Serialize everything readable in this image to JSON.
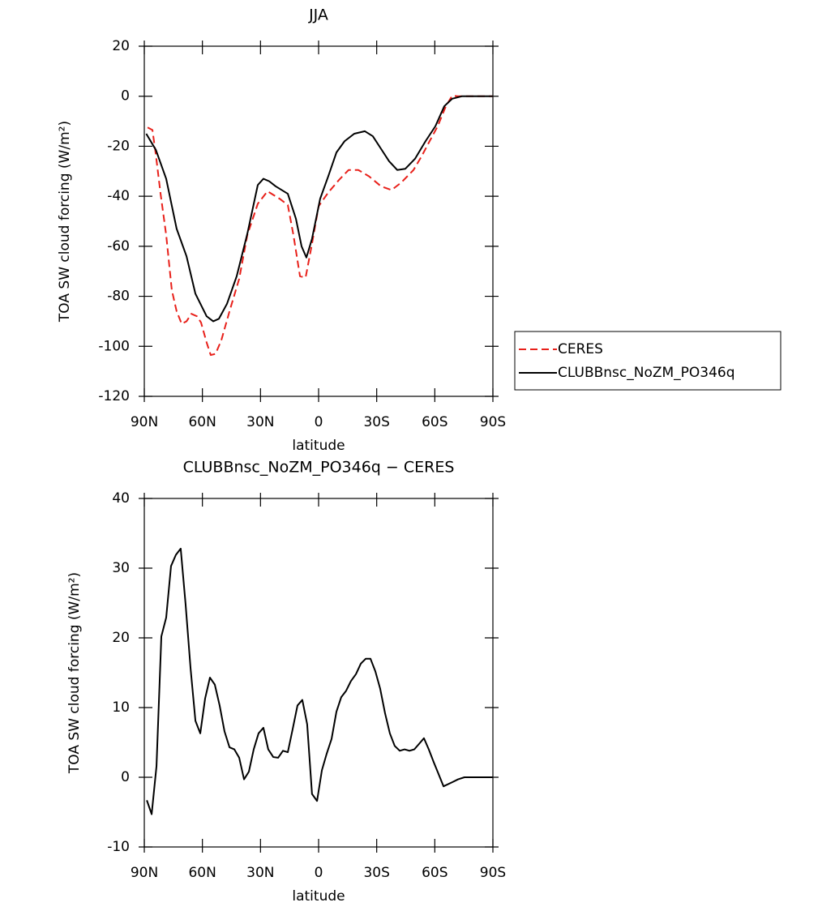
{
  "chart_data": [
    {
      "type": "line",
      "title": "JJA",
      "xlabel": "latitude",
      "ylabel": "TOA SW cloud forcing (W/m²)",
      "xlim": [
        90,
        -90
      ],
      "xticks": [
        {
          "value": 90,
          "label": "90N"
        },
        {
          "value": 60,
          "label": "60N"
        },
        {
          "value": 30,
          "label": "30N"
        },
        0,
        {
          "value": -30,
          "label": "30S"
        },
        {
          "value": -60,
          "label": "60S"
        },
        {
          "value": -90,
          "label": "90S"
        }
      ],
      "ylim": [
        -120,
        20
      ],
      "yticks": [
        -120,
        -100,
        -80,
        -60,
        -40,
        -20,
        0,
        20
      ],
      "legend": "right",
      "series": [
        {
          "name": "CERES",
          "color": "#e8201a",
          "dashed": true,
          "x": [
            88.3,
            85.8,
            84.1,
            81.6,
            78.7,
            75.8,
            73.3,
            70.7,
            68.2,
            65.7,
            62.8,
            60.7,
            57.8,
            55.7,
            53.2,
            50.2,
            46,
            41,
            36.8,
            31.4,
            26.4,
            20.1,
            15.9,
            13,
            9.6,
            6.7,
            3.4,
            0,
            -5,
            -10.5,
            -15.5,
            -20.5,
            -26,
            -32.2,
            -37.7,
            -42.7,
            -49,
            -53.2,
            -57.3,
            -61.5,
            -65.7,
            -69,
            -72,
            -90
          ],
          "values": [
            -12.5,
            -13.5,
            -23,
            -39,
            -55.5,
            -77.5,
            -86,
            -91,
            -90,
            -87,
            -88,
            -90.5,
            -98.5,
            -103.5,
            -103,
            -97.5,
            -86,
            -73,
            -55.5,
            -43,
            -38,
            -41,
            -43.5,
            -55.5,
            -72,
            -72.5,
            -59,
            -44,
            -38.5,
            -33.5,
            -29.5,
            -29.5,
            -32,
            -36,
            -37.5,
            -34.5,
            -29.5,
            -24,
            -18,
            -12,
            -4,
            0.2,
            0,
            0
          ]
        },
        {
          "name": "CLUBBnsc_NoZM_PO346q",
          "color": "#000000",
          "dashed": false,
          "x": [
            89,
            84,
            78.7,
            73.3,
            68.2,
            63.6,
            57.8,
            54.4,
            51.5,
            47.3,
            42.3,
            36.8,
            31.4,
            28.5,
            25.5,
            22.2,
            15.9,
            11.7,
            8.8,
            6.3,
            3.4,
            -0.8,
            -5,
            -9.2,
            -13.4,
            -18.4,
            -23.9,
            -28,
            -32.2,
            -36.4,
            -40.6,
            -44.8,
            -49.8,
            -55.2,
            -60.3,
            -64.9,
            -69,
            -74.1,
            -90
          ],
          "values": [
            -15,
            -21.5,
            -33,
            -53,
            -64,
            -79,
            -88,
            -90,
            -89,
            -83,
            -72,
            -55,
            -35.5,
            -33,
            -34,
            -36,
            -39,
            -49,
            -60,
            -64.5,
            -57,
            -41,
            -32,
            -22.5,
            -18,
            -15,
            -14,
            -16,
            -21,
            -26,
            -29.5,
            -29,
            -25,
            -18,
            -12,
            -4,
            -1,
            0,
            0
          ]
        }
      ]
    },
    {
      "type": "line",
      "title": "CLUBBnsc_NoZM_PO346q − CERES",
      "xlabel": "latitude",
      "ylabel": "TOA SW cloud forcing (W/m²)",
      "xlim": [
        90,
        -90
      ],
      "xticks": [
        {
          "value": 90,
          "label": "90N"
        },
        {
          "value": 60,
          "label": "60N"
        },
        {
          "value": 30,
          "label": "30N"
        },
        0,
        {
          "value": -30,
          "label": "30S"
        },
        {
          "value": -60,
          "label": "60S"
        },
        {
          "value": -90,
          "label": "90S"
        }
      ],
      "ylim": [
        -10,
        40
      ],
      "yticks": [
        -10,
        0,
        10,
        20,
        30,
        40
      ],
      "series": [
        {
          "color": "#000000",
          "dashed": false,
          "x": [
            88.7,
            86.2,
            83.7,
            81.2,
            78.7,
            76.2,
            73.7,
            71.2,
            68.7,
            66.1,
            63.6,
            61.1,
            58.6,
            56.1,
            53.6,
            51.1,
            48.6,
            46,
            43.5,
            41,
            38.5,
            36,
            33.5,
            31,
            28.5,
            26,
            23.4,
            20.9,
            18.4,
            15.9,
            13.4,
            10.9,
            8.4,
            5.9,
            3.4,
            0.8,
            -1.7,
            -4.2,
            -6.7,
            -9.2,
            -11.7,
            -14.2,
            -16.7,
            -19.3,
            -21.8,
            -24.3,
            -26.8,
            -29.3,
            -31.8,
            -34.3,
            -36.8,
            -39.3,
            -41.9,
            -44.4,
            -46.9,
            -49.4,
            -51.9,
            -54.4,
            -56.9,
            -59.4,
            -61.9,
            -64.5,
            -69.1,
            -72,
            -75.3,
            -90
          ],
          "values": [
            -3.3,
            -5.3,
            1.6,
            20.2,
            22.9,
            30.3,
            31.9,
            32.8,
            24.9,
            15.6,
            8.1,
            6.3,
            11.3,
            14.3,
            13.3,
            10.3,
            6.6,
            4.3,
            4,
            2.8,
            -0.3,
            0.8,
            4,
            6.3,
            7.1,
            4,
            2.9,
            2.8,
            3.8,
            3.6,
            6.9,
            10.3,
            11.1,
            7.6,
            -2.4,
            -3.4,
            1,
            3.4,
            5.5,
            9.4,
            11.5,
            12.4,
            13.8,
            14.8,
            16.3,
            17,
            17,
            15.2,
            12.7,
            9.2,
            6.3,
            4.5,
            3.8,
            4,
            3.8,
            4,
            4.8,
            5.6,
            4,
            2.2,
            0.5,
            -1.3,
            -0.7,
            -0.3,
            0,
            0
          ]
        }
      ]
    }
  ]
}
